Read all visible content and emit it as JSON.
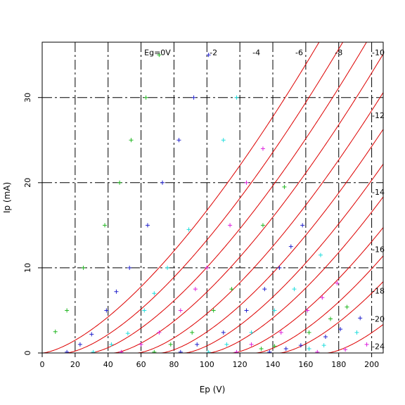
{
  "chart_data": {
    "type": "line",
    "xlabel": "Ep (V)",
    "ylabel": "Ip (mA)",
    "xlim": [
      0,
      207
    ],
    "ylim": [
      0,
      36.5
    ],
    "xticks": [
      0,
      20,
      40,
      60,
      80,
      100,
      120,
      140,
      160,
      180,
      200
    ],
    "xtick_labels": [
      "0",
      "20",
      "40",
      "60",
      "80",
      "100",
      "120",
      "140",
      "160",
      "180",
      "200"
    ],
    "yticks": [
      0,
      10,
      20,
      30
    ],
    "ytick_labels": [
      "0",
      "10",
      "20",
      "30"
    ],
    "grid": true,
    "model_curves": [
      {
        "label": "Eg=0V",
        "eg": 0,
        "label_x": 70,
        "label_y": 35.3
      },
      {
        "label": "-2",
        "eg": -2,
        "label_x": 104,
        "label_y": 35.3
      },
      {
        "label": "-4",
        "eg": -4,
        "label_x": 130,
        "label_y": 35.3
      },
      {
        "label": "-6",
        "eg": -6,
        "label_x": 156,
        "label_y": 35.3
      },
      {
        "label": "-8",
        "eg": -8,
        "label_x": 180,
        "label_y": 35.3
      },
      {
        "label": "-10",
        "eg": -10,
        "label_x": 204,
        "label_y": 35.3
      },
      {
        "label": "-12",
        "eg": -12,
        "label_x": 204,
        "label_y": 27.9
      },
      {
        "label": "-14",
        "eg": -14,
        "label_x": 204,
        "label_y": 18.9
      },
      {
        "label": "-16",
        "eg": -16,
        "label_x": 204,
        "label_y": 12.2
      },
      {
        "label": "-18",
        "eg": -18,
        "label_x": 204,
        "label_y": 7.3
      },
      {
        "label": "-20",
        "eg": -20,
        "label_x": 204,
        "label_y": 4.0
      },
      {
        "label": "-24",
        "eg": -24,
        "label_x": 204,
        "label_y": 0.8
      }
    ],
    "model": {
      "k": 0.01675,
      "mu": 7.2,
      "exponent": 1.5
    },
    "measured": [
      {
        "name": "Eg=0V",
        "color": "#22b722",
        "points": [
          [
            8,
            2.5
          ],
          [
            15,
            5
          ],
          [
            25,
            10
          ],
          [
            38,
            15
          ],
          [
            47,
            20
          ],
          [
            54,
            25
          ],
          [
            63,
            30
          ],
          [
            71,
            35
          ]
        ]
      },
      {
        "name": "-2",
        "color": "#2222cc",
        "points": [
          [
            15,
            0.1
          ],
          [
            23,
            1
          ],
          [
            30,
            2.2
          ],
          [
            39,
            5
          ],
          [
            45,
            7.2
          ],
          [
            53,
            10
          ],
          [
            64,
            15
          ],
          [
            73,
            20
          ],
          [
            83,
            25
          ],
          [
            92,
            30
          ],
          [
            101,
            35
          ]
        ]
      },
      {
        "name": "-4",
        "color": "#22dddd",
        "points": [
          [
            31,
            0.1
          ],
          [
            42,
            1
          ],
          [
            52,
            2.3
          ],
          [
            62,
            5
          ],
          [
            68,
            7
          ],
          [
            76,
            10
          ],
          [
            89,
            14.5
          ],
          [
            110,
            25
          ],
          [
            118,
            30
          ]
        ]
      },
      {
        "name": "-6",
        "color": "#dd22dd",
        "points": [
          [
            48,
            0.1
          ],
          [
            60,
            1
          ],
          [
            71,
            2.4
          ],
          [
            84,
            5
          ],
          [
            93,
            7.5
          ],
          [
            100,
            10
          ],
          [
            114,
            15
          ],
          [
            124,
            20
          ],
          [
            134,
            24
          ]
        ]
      },
      {
        "name": "-8",
        "color": "#22b722",
        "points": [
          [
            68,
            0.1
          ],
          [
            78,
            1
          ],
          [
            91,
            2.4
          ],
          [
            104,
            5
          ],
          [
            115,
            7.5
          ],
          [
            134,
            15
          ],
          [
            147,
            19.5
          ]
        ]
      },
      {
        "name": "-10",
        "color": "#2222cc",
        "points": [
          [
            84,
            0.1
          ],
          [
            94,
            1
          ],
          [
            110,
            2.4
          ],
          [
            124,
            5
          ],
          [
            135,
            7.5
          ],
          [
            144,
            10
          ],
          [
            151,
            12.5
          ],
          [
            158,
            15
          ]
        ]
      },
      {
        "name": "-12",
        "color": "#22dddd",
        "points": [
          [
            101,
            0.1
          ],
          [
            112,
            1
          ],
          [
            127,
            2.4
          ],
          [
            141,
            5
          ],
          [
            153,
            7.5
          ],
          [
            169,
            11.5
          ]
        ]
      },
      {
        "name": "-14",
        "color": "#dd22dd",
        "points": [
          [
            118,
            0.1
          ],
          [
            127,
            1
          ],
          [
            145,
            2.4
          ],
          [
            161,
            5
          ],
          [
            170,
            6.5
          ],
          [
            179,
            8.2
          ]
        ]
      },
      {
        "name": "-16",
        "color": "#22b722",
        "points": [
          [
            133,
            0.5
          ],
          [
            141,
            0.8
          ],
          [
            162,
            2.4
          ],
          [
            175,
            4
          ],
          [
            185,
            5.4
          ]
        ]
      },
      {
        "name": "-18",
        "color": "#2222cc",
        "points": [
          [
            138,
            0.1
          ],
          [
            148,
            0.5
          ],
          [
            157,
            0.9
          ],
          [
            172,
            1.9
          ],
          [
            181,
            2.8
          ],
          [
            193,
            4.1
          ]
        ]
      },
      {
        "name": "-20",
        "color": "#22dddd",
        "points": [
          [
            162,
            0.5
          ],
          [
            171,
            0.9
          ],
          [
            191,
            2.4
          ]
        ]
      },
      {
        "name": "-24",
        "color": "#dd22dd",
        "points": [
          [
            167,
            0.1
          ],
          [
            184,
            0.4
          ],
          [
            197,
            1
          ]
        ]
      }
    ]
  }
}
